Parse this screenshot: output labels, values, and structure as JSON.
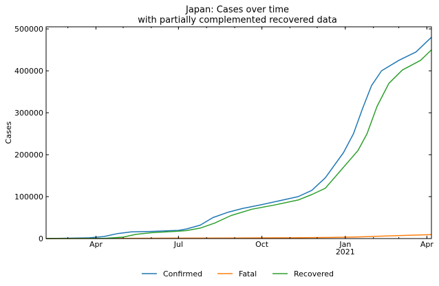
{
  "chart_data": {
    "type": "line",
    "title": "Japan: Cases over time",
    "subtitle": "with partially complemented recovered data",
    "xlabel": "",
    "ylabel": "Cases",
    "xlim": [
      "2020-02-06",
      "2021-04-06"
    ],
    "ylim": [
      0,
      505000
    ],
    "yticks": [
      0,
      100000,
      200000,
      300000,
      400000,
      500000
    ],
    "xticks": [
      {
        "date": "2020-04-01",
        "label": "Apr",
        "sublabel": ""
      },
      {
        "date": "2020-07-01",
        "label": "Jul",
        "sublabel": ""
      },
      {
        "date": "2020-10-01",
        "label": "Oct",
        "sublabel": ""
      },
      {
        "date": "2021-01-01",
        "label": "Jan",
        "sublabel": "2021"
      },
      {
        "date": "2021-04-01",
        "label": "Apr",
        "sublabel": ""
      }
    ],
    "grid": false,
    "legend_position": "bottom-center",
    "series": [
      {
        "name": "Confirmed",
        "color": "#1f77b4",
        "points": [
          [
            "2020-02-06",
            0
          ],
          [
            "2020-03-01",
            900
          ],
          [
            "2020-03-25",
            1800
          ],
          [
            "2020-04-10",
            5000
          ],
          [
            "2020-04-25",
            12000
          ],
          [
            "2020-05-10",
            16000
          ],
          [
            "2020-06-01",
            17000
          ],
          [
            "2020-07-01",
            19500
          ],
          [
            "2020-07-10",
            23000
          ],
          [
            "2020-07-25",
            32000
          ],
          [
            "2020-08-08",
            50000
          ],
          [
            "2020-08-25",
            63000
          ],
          [
            "2020-09-10",
            72000
          ],
          [
            "2020-10-01",
            81000
          ],
          [
            "2020-10-20",
            90000
          ],
          [
            "2020-11-10",
            100000
          ],
          [
            "2020-11-25",
            115000
          ],
          [
            "2020-12-10",
            145000
          ],
          [
            "2020-12-30",
            205000
          ],
          [
            "2021-01-10",
            250000
          ],
          [
            "2021-01-20",
            310000
          ],
          [
            "2021-01-30",
            365000
          ],
          [
            "2021-02-10",
            400000
          ],
          [
            "2021-03-01",
            425000
          ],
          [
            "2021-03-20",
            445000
          ],
          [
            "2021-04-06",
            480000
          ]
        ]
      },
      {
        "name": "Fatal",
        "color": "#ff7f0e",
        "points": [
          [
            "2020-02-06",
            0
          ],
          [
            "2020-04-01",
            100
          ],
          [
            "2020-05-15",
            700
          ],
          [
            "2020-07-01",
            1000
          ],
          [
            "2020-09-01",
            1300
          ],
          [
            "2020-11-01",
            1800
          ],
          [
            "2020-12-15",
            2600
          ],
          [
            "2021-01-15",
            4000
          ],
          [
            "2021-02-15",
            6000
          ],
          [
            "2021-03-15",
            8000
          ],
          [
            "2021-04-06",
            9300
          ]
        ]
      },
      {
        "name": "Recovered",
        "color": "#2ca02c",
        "points": [
          [
            "2020-02-06",
            0
          ],
          [
            "2020-04-10",
            500
          ],
          [
            "2020-05-01",
            3500
          ],
          [
            "2020-05-15",
            10000
          ],
          [
            "2020-06-01",
            14000
          ],
          [
            "2020-07-01",
            17500
          ],
          [
            "2020-07-10",
            19000
          ],
          [
            "2020-07-25",
            25000
          ],
          [
            "2020-08-10",
            37000
          ],
          [
            "2020-08-28",
            55000
          ],
          [
            "2020-09-20",
            70000
          ],
          [
            "2020-10-15",
            80000
          ],
          [
            "2020-11-10",
            92000
          ],
          [
            "2020-11-25",
            105000
          ],
          [
            "2020-12-10",
            120000
          ],
          [
            "2020-12-30",
            170000
          ],
          [
            "2021-01-15",
            210000
          ],
          [
            "2021-01-25",
            250000
          ],
          [
            "2021-02-05",
            315000
          ],
          [
            "2021-02-18",
            370000
          ],
          [
            "2021-03-05",
            402000
          ],
          [
            "2021-03-25",
            425000
          ],
          [
            "2021-04-06",
            450000
          ]
        ]
      }
    ]
  }
}
